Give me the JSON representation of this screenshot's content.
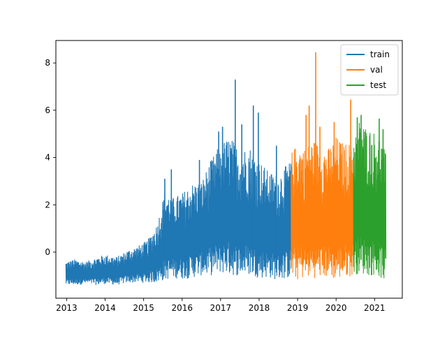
{
  "chart_data": {
    "type": "line",
    "title": "",
    "xlabel": "",
    "ylabel": "",
    "xlim": [
      2012.72,
      2021.72
    ],
    "ylim": [
      -1.95,
      8.95
    ],
    "x_ticks": [
      2013,
      2014,
      2015,
      2016,
      2017,
      2018,
      2019,
      2020,
      2021
    ],
    "x_tick_labels": [
      "2013",
      "2014",
      "2015",
      "2016",
      "2017",
      "2018",
      "2019",
      "2020",
      "2021"
    ],
    "y_ticks": [
      0,
      2,
      4,
      6,
      8
    ],
    "y_tick_labels": [
      "0",
      "2",
      "4",
      "6",
      "8"
    ],
    "grid": false,
    "legend": {
      "placement": "top-right"
    },
    "series": [
      {
        "name": "train",
        "color": "#1f77b4",
        "x": [
          2012.98,
          2013.2,
          2013.5,
          2013.8,
          2014.0,
          2014.3,
          2014.6,
          2014.9,
          2015.1,
          2015.35,
          2015.55,
          2015.75,
          2016.0,
          2016.25,
          2016.5,
          2016.75,
          2017.0,
          2017.25,
          2017.5,
          2017.75,
          2018.0,
          2018.25,
          2018.5,
          2018.83
        ],
        "envelope_high": [
          -0.4,
          -0.3,
          -0.4,
          -0.2,
          -0.1,
          -0.2,
          0.1,
          0.3,
          0.5,
          1.2,
          2.6,
          2.3,
          2.5,
          2.9,
          3.0,
          3.9,
          4.6,
          4.9,
          4.3,
          4.5,
          3.9,
          3.4,
          3.3,
          3.9
        ],
        "envelope_low": [
          -1.4,
          -1.4,
          -1.35,
          -1.4,
          -1.35,
          -1.4,
          -1.3,
          -1.3,
          -1.3,
          -1.3,
          -1.2,
          -1.1,
          -1.15,
          -1.1,
          -1.0,
          -1.0,
          -0.9,
          -1.0,
          -1.0,
          -1.0,
          -1.1,
          -1.1,
          -1.2,
          -1.1
        ],
        "peaks": [
          {
            "x": 2015.55,
            "y": 3.1
          },
          {
            "x": 2015.72,
            "y": 3.5
          },
          {
            "x": 2016.45,
            "y": 3.9
          },
          {
            "x": 2016.95,
            "y": 5.1
          },
          {
            "x": 2017.05,
            "y": 5.3
          },
          {
            "x": 2017.38,
            "y": 7.3
          },
          {
            "x": 2017.55,
            "y": 5.4
          },
          {
            "x": 2017.85,
            "y": 6.2
          },
          {
            "x": 2017.98,
            "y": 5.9
          },
          {
            "x": 2018.45,
            "y": 4.5
          }
        ]
      },
      {
        "name": "val",
        "color": "#ff7f0e",
        "x": [
          2018.83,
          2019.0,
          2019.2,
          2019.4,
          2019.6,
          2019.8,
          2020.0,
          2020.2,
          2020.45
        ],
        "envelope_high": [
          4.2,
          4.6,
          4.4,
          4.8,
          4.5,
          4.4,
          4.9,
          4.6,
          4.7
        ],
        "envelope_low": [
          -1.1,
          -1.2,
          -1.1,
          -1.1,
          -1.1,
          -1.1,
          -1.2,
          -1.1,
          -1.0
        ],
        "peaks": [
          {
            "x": 2019.22,
            "y": 5.8
          },
          {
            "x": 2019.3,
            "y": 6.2
          },
          {
            "x": 2019.47,
            "y": 8.45
          },
          {
            "x": 2019.58,
            "y": 5.3
          },
          {
            "x": 2019.95,
            "y": 5.5
          },
          {
            "x": 2020.38,
            "y": 6.45
          }
        ]
      },
      {
        "name": "test",
        "color": "#2ca02c",
        "x": [
          2020.45,
          2020.6,
          2020.8,
          2021.0,
          2021.15,
          2021.3
        ],
        "envelope_high": [
          4.9,
          5.6,
          5.3,
          5.1,
          4.9,
          4.1
        ],
        "envelope_low": [
          -1.0,
          -0.9,
          -1.0,
          -1.0,
          -1.1,
          -1.3
        ],
        "peaks": [
          {
            "x": 2020.55,
            "y": 5.7
          },
          {
            "x": 2020.65,
            "y": 5.8
          },
          {
            "x": 2021.12,
            "y": 5.65
          },
          {
            "x": 2021.22,
            "y": 5.2
          }
        ]
      }
    ]
  }
}
